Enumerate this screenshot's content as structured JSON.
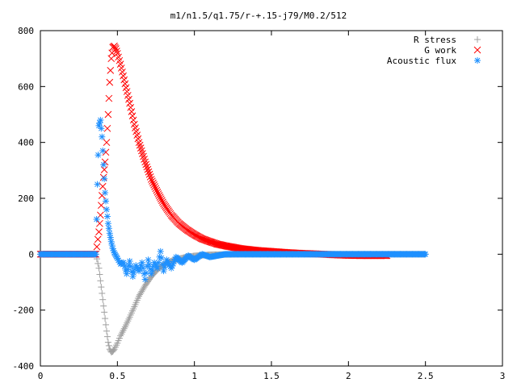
{
  "chart_data": {
    "type": "scatter",
    "title": "m1/n1.5/q1.75/r-+.15-j79/M0.2/512",
    "xlabel": "",
    "ylabel": "",
    "xlim": [
      0,
      3
    ],
    "ylim": [
      -400,
      800
    ],
    "x_ticks": [
      0,
      0.5,
      1,
      1.5,
      2,
      2.5,
      3
    ],
    "x_tick_labels": [
      "0",
      "0.5",
      "1",
      "1.5",
      "2",
      "2.5",
      "3"
    ],
    "y_ticks": [
      -400,
      -200,
      0,
      200,
      400,
      600,
      800
    ],
    "y_tick_labels": [
      "-400",
      "-200",
      "0",
      "200",
      "400",
      "600",
      "800"
    ],
    "grid": false,
    "legend_position": "top-right",
    "series": [
      {
        "name": "R stress",
        "marker": "plus",
        "color": "#a0a0a0",
        "x": [
          0,
          0.1,
          0.2,
          0.3,
          0.36,
          0.38,
          0.39,
          0.4,
          0.41,
          0.42,
          0.43,
          0.44,
          0.45,
          0.46,
          0.47,
          0.48,
          0.5,
          0.52,
          0.55,
          0.58,
          0.61,
          0.64,
          0.68,
          0.72,
          0.76,
          0.8,
          0.85,
          0.9,
          0.95,
          1.0,
          1.1,
          1.2,
          1.3,
          1.4,
          1.5,
          1.7,
          1.9,
          2.1,
          2.3,
          2.5
        ],
        "y": [
          0,
          0,
          0,
          0,
          0,
          -50,
          -95,
          -140,
          -185,
          -230,
          -275,
          -315,
          -340,
          -350,
          -348,
          -340,
          -318,
          -292,
          -260,
          -225,
          -188,
          -150,
          -112,
          -80,
          -55,
          -37,
          -24,
          -16,
          -10,
          -6,
          -2,
          -1,
          0,
          0,
          0,
          0,
          0,
          0,
          0,
          0
        ]
      },
      {
        "name": "G work",
        "marker": "cross",
        "color": "#ff0000",
        "x": [
          0,
          0.1,
          0.2,
          0.3,
          0.36,
          0.38,
          0.39,
          0.4,
          0.41,
          0.42,
          0.43,
          0.44,
          0.45,
          0.46,
          0.47,
          0.48,
          0.49,
          0.5,
          0.52,
          0.55,
          0.58,
          0.61,
          0.64,
          0.68,
          0.72,
          0.76,
          0.8,
          0.85,
          0.9,
          0.95,
          1.0,
          1.05,
          1.1,
          1.15,
          1.2,
          1.3,
          1.4,
          1.5,
          1.6,
          1.7,
          1.8,
          1.9,
          2.0,
          2.1,
          2.25
        ],
        "y": [
          0,
          0,
          0,
          0,
          0,
          80,
          140,
          210,
          275,
          330,
          400,
          500,
          615,
          700,
          740,
          745,
          735,
          718,
          680,
          610,
          540,
          465,
          400,
          330,
          268,
          222,
          180,
          140,
          110,
          88,
          70,
          55,
          45,
          36,
          30,
          20,
          14,
          10,
          6,
          3,
          1,
          -2,
          -4,
          -5,
          -5
        ]
      },
      {
        "name": "Acoustic flux",
        "marker": "star",
        "color": "#1e90ff",
        "x": [
          0,
          0.1,
          0.2,
          0.3,
          0.36,
          0.37,
          0.38,
          0.39,
          0.4,
          0.41,
          0.42,
          0.43,
          0.44,
          0.45,
          0.46,
          0.47,
          0.48,
          0.49,
          0.5,
          0.52,
          0.54,
          0.56,
          0.58,
          0.6,
          0.62,
          0.64,
          0.66,
          0.68,
          0.7,
          0.72,
          0.74,
          0.76,
          0.78,
          0.8,
          0.82,
          0.85,
          0.88,
          0.92,
          0.96,
          1.0,
          1.05,
          1.1,
          1.2,
          1.3,
          1.4,
          1.5,
          1.7,
          1.9,
          2.1,
          2.3,
          2.5
        ],
        "y": [
          0,
          0,
          0,
          0,
          0,
          250,
          460,
          480,
          420,
          320,
          220,
          160,
          110,
          75,
          45,
          20,
          5,
          -5,
          -15,
          -35,
          -30,
          -70,
          -25,
          -80,
          -40,
          -60,
          -30,
          -90,
          -20,
          -70,
          -30,
          -50,
          10,
          -60,
          -20,
          -50,
          -10,
          -30,
          -5,
          -20,
          0,
          -10,
          0,
          0,
          0,
          0,
          0,
          0,
          0,
          0,
          0
        ]
      }
    ]
  }
}
